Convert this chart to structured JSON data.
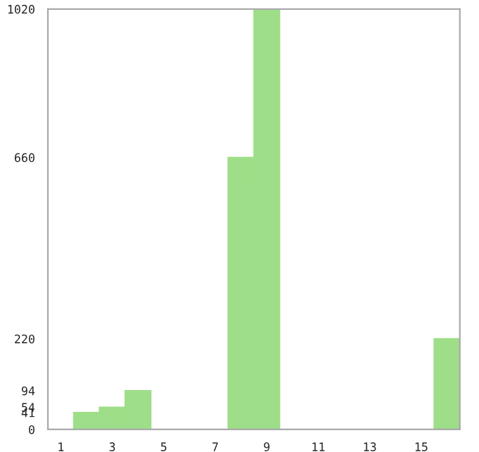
{
  "chart_data": {
    "type": "bar",
    "categories": [
      "1",
      null,
      "3",
      null,
      "5",
      null,
      "7",
      null,
      "9",
      null,
      "11",
      null,
      "13",
      null,
      "15",
      null
    ],
    "values": [
      0,
      41,
      54,
      94,
      0,
      0,
      0,
      660,
      1020,
      0,
      0,
      0,
      0,
      0,
      0,
      220
    ],
    "color": "#9ede88",
    "ylim": [
      0,
      1020
    ],
    "yticks": [
      0,
      41,
      54,
      94,
      220,
      660,
      1020
    ],
    "grid": false
  }
}
